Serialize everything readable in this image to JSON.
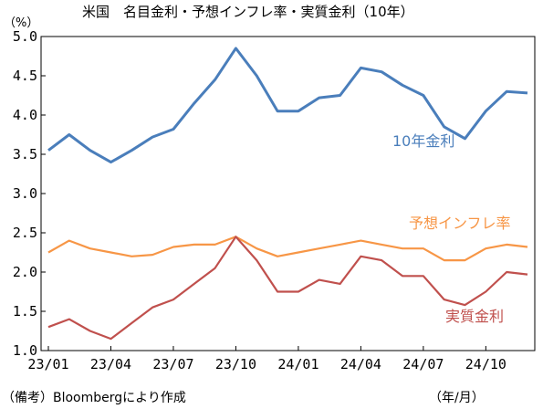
{
  "chart_data": {
    "type": "line",
    "title": "米国　名目金利・予想インフレ率・実質金利（10年）",
    "unit": "（%）",
    "source": "（備考）Bloombergにより作成",
    "x_unit": "（年/月）",
    "ylim": [
      1.0,
      5.0
    ],
    "y_ticks": [
      "1.0",
      "1.5",
      "2.0",
      "2.5",
      "3.0",
      "3.5",
      "4.0",
      "4.5",
      "5.0"
    ],
    "x_ticks": [
      "23/01",
      "23/04",
      "23/07",
      "23/10",
      "24/01",
      "24/04",
      "24/07",
      "24/10"
    ],
    "grid": false,
    "x": [
      "2023-01",
      "2023-02",
      "2023-03",
      "2023-04",
      "2023-05",
      "2023-06",
      "2023-07",
      "2023-08",
      "2023-09",
      "2023-10",
      "2023-11",
      "2023-12",
      "2024-01",
      "2024-02",
      "2024-03",
      "2024-04",
      "2024-05",
      "2024-06",
      "2024-07",
      "2024-08",
      "2024-09",
      "2024-10",
      "2024-11",
      "2024-12"
    ],
    "series": [
      {
        "name": "10年金利",
        "color": "#4a7ebb",
        "values": [
          3.55,
          3.75,
          3.55,
          3.4,
          3.55,
          3.72,
          3.82,
          4.15,
          4.45,
          4.85,
          4.5,
          4.05,
          4.05,
          4.22,
          4.25,
          4.6,
          4.55,
          4.38,
          4.25,
          3.85,
          3.7,
          4.05,
          4.3,
          4.28
        ]
      },
      {
        "name": "予想インフレ率",
        "color": "#f79646",
        "values": [
          2.25,
          2.4,
          2.3,
          2.25,
          2.2,
          2.22,
          2.32,
          2.35,
          2.35,
          2.45,
          2.3,
          2.2,
          2.25,
          2.3,
          2.35,
          2.4,
          2.35,
          2.3,
          2.3,
          2.15,
          2.15,
          2.3,
          2.35,
          2.32
        ]
      },
      {
        "name": "実質金利",
        "color": "#c0504d",
        "values": [
          1.3,
          1.4,
          1.25,
          1.15,
          1.35,
          1.55,
          1.65,
          1.85,
          2.05,
          2.45,
          2.15,
          1.75,
          1.75,
          1.9,
          1.85,
          2.2,
          2.15,
          1.95,
          1.95,
          1.65,
          1.58,
          1.75,
          2.0,
          1.97
        ]
      }
    ]
  }
}
